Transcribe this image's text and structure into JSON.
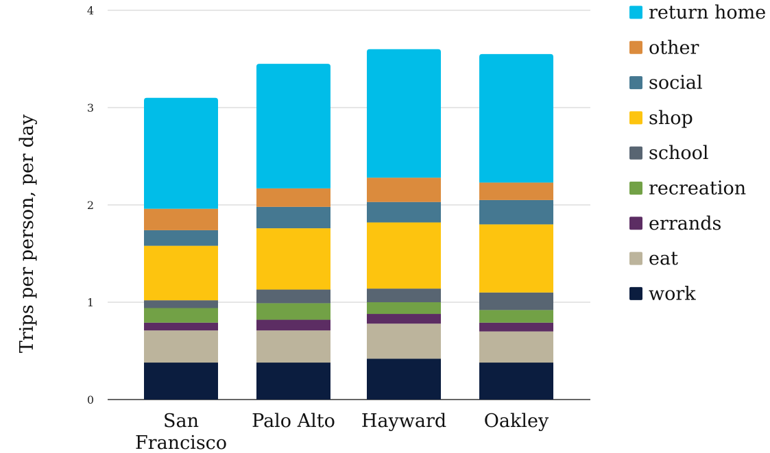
{
  "chart_data": {
    "type": "bar",
    "stacked": true,
    "categories": [
      [
        "San",
        "Francisco"
      ],
      [
        "Palo Alto"
      ],
      [
        "Hayward"
      ],
      [
        "Oakley"
      ]
    ],
    "ylabel": "Trips per person, per day",
    "ylim": [
      0,
      4
    ],
    "yticks": [
      "0",
      "1",
      "2",
      "3",
      "4"
    ],
    "grid": true,
    "legend_position": "right",
    "series": [
      {
        "name": "work",
        "color": "#0b1d3f",
        "values": [
          0.38,
          0.38,
          0.42,
          0.38
        ]
      },
      {
        "name": "eat",
        "color": "#bcb49c",
        "values": [
          0.33,
          0.33,
          0.36,
          0.32
        ]
      },
      {
        "name": "errands",
        "color": "#5c2d63",
        "values": [
          0.08,
          0.11,
          0.1,
          0.09
        ]
      },
      {
        "name": "recreation",
        "color": "#72a146",
        "values": [
          0.15,
          0.17,
          0.12,
          0.13
        ]
      },
      {
        "name": "school",
        "color": "#586572",
        "values": [
          0.08,
          0.14,
          0.14,
          0.18
        ]
      },
      {
        "name": "shop",
        "color": "#fdc40f",
        "values": [
          0.56,
          0.63,
          0.68,
          0.7
        ]
      },
      {
        "name": "social",
        "color": "#457891",
        "values": [
          0.16,
          0.22,
          0.21,
          0.25
        ]
      },
      {
        "name": "other",
        "color": "#db8b3d",
        "values": [
          0.22,
          0.19,
          0.25,
          0.18
        ]
      },
      {
        "name": "return home",
        "color": "#01bde8",
        "values": [
          1.14,
          1.28,
          1.32,
          1.32
        ]
      }
    ]
  }
}
